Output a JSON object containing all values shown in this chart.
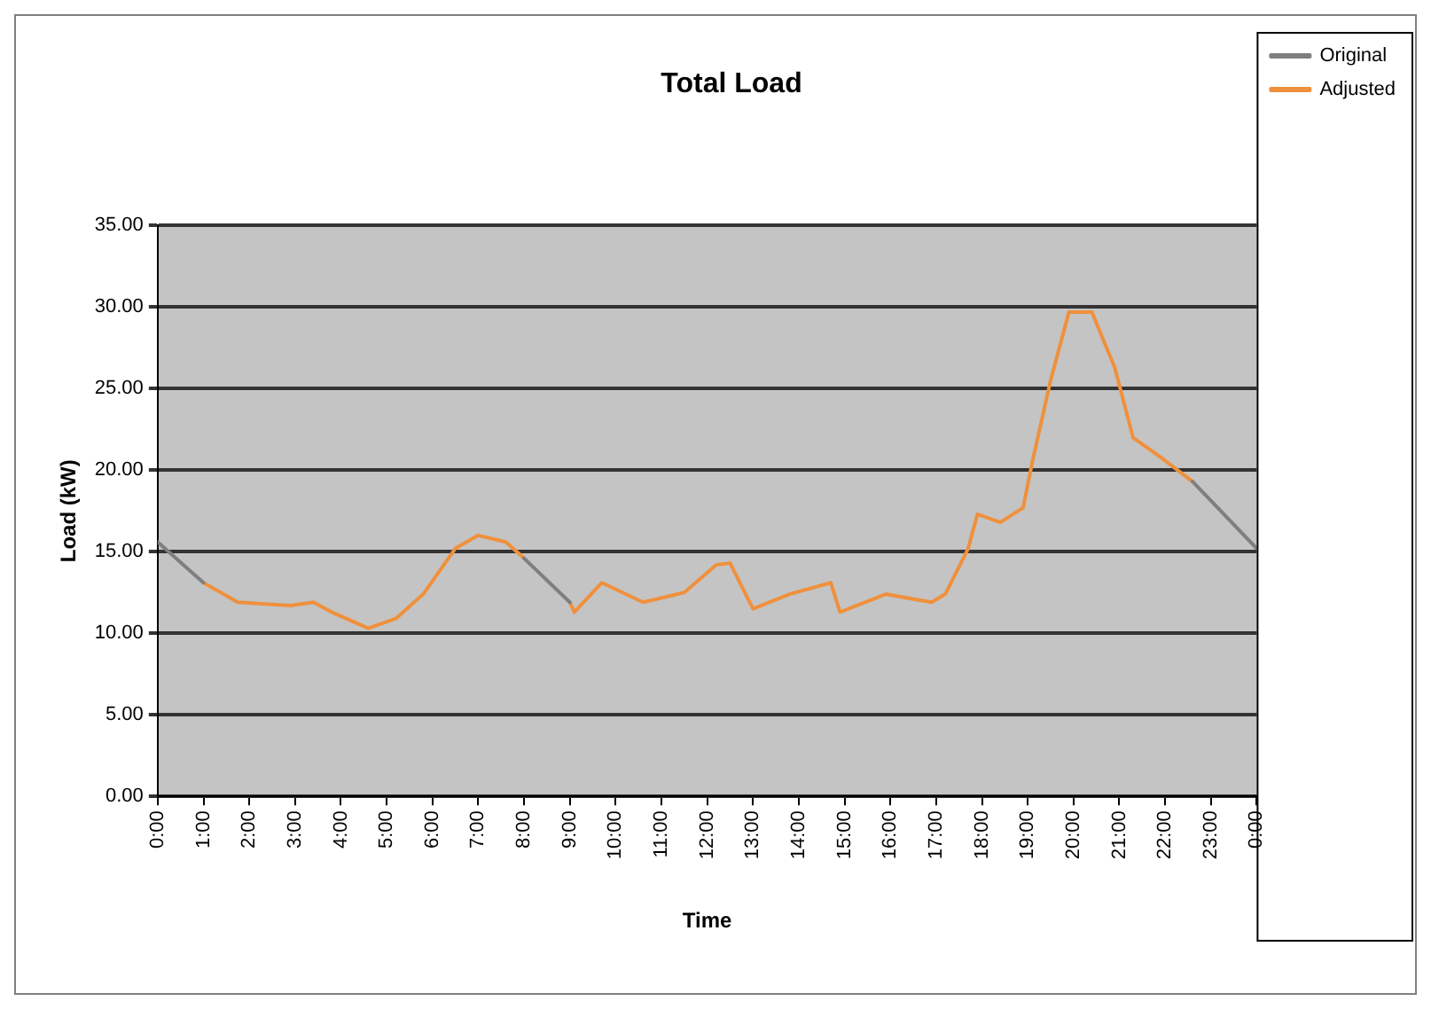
{
  "chart_data": {
    "type": "line",
    "title": "Total Load",
    "xlabel": "Time",
    "ylabel": "Load (kW)",
    "xlim": [
      0,
      24
    ],
    "xticks": [
      {
        "value": 0,
        "label": "0:00"
      },
      {
        "value": 1,
        "label": "1:00"
      },
      {
        "value": 2,
        "label": "2:00"
      },
      {
        "value": 3,
        "label": "3:00"
      },
      {
        "value": 4,
        "label": "4:00"
      },
      {
        "value": 5,
        "label": "5:00"
      },
      {
        "value": 6,
        "label": "6:00"
      },
      {
        "value": 7,
        "label": "7:00"
      },
      {
        "value": 8,
        "label": "8:00"
      },
      {
        "value": 9,
        "label": "9:00"
      },
      {
        "value": 10,
        "label": "10:00"
      },
      {
        "value": 11,
        "label": "11:00"
      },
      {
        "value": 12,
        "label": "12:00"
      },
      {
        "value": 13,
        "label": "13:00"
      },
      {
        "value": 14,
        "label": "14:00"
      },
      {
        "value": 15,
        "label": "15:00"
      },
      {
        "value": 16,
        "label": "16:00"
      },
      {
        "value": 17,
        "label": "17:00"
      },
      {
        "value": 18,
        "label": "18:00"
      },
      {
        "value": 19,
        "label": "19:00"
      },
      {
        "value": 20,
        "label": "20:00"
      },
      {
        "value": 21,
        "label": "21:00"
      },
      {
        "value": 22,
        "label": "22:00"
      },
      {
        "value": 23,
        "label": "23:00"
      },
      {
        "value": 24,
        "label": "0:00"
      }
    ],
    "ylim": [
      0,
      35
    ],
    "yticks": [
      {
        "value": 0,
        "label": "0.00"
      },
      {
        "value": 5,
        "label": "5.00"
      },
      {
        "value": 10,
        "label": "10.00"
      },
      {
        "value": 15,
        "label": "15.00"
      },
      {
        "value": 20,
        "label": "20.00"
      },
      {
        "value": 25,
        "label": "25.00"
      },
      {
        "value": 30,
        "label": "30.00"
      },
      {
        "value": 35,
        "label": "35.00"
      }
    ],
    "grid": "y",
    "legend": "top right",
    "marker": "none",
    "line_style": "solid",
    "series": [
      {
        "name": "Original",
        "color": "#7f7f7f",
        "x": [
          0,
          1,
          1.01,
          8,
          9,
          9.01,
          22.6,
          24
        ],
        "values": [
          15.6,
          13.1,
          null,
          14.6,
          11.9,
          null,
          19.3,
          15.2
        ]
      },
      {
        "name": "Adjusted",
        "color": "#f0903c",
        "x": [
          1,
          1.75,
          2.9,
          3.4,
          3.8,
          4.6,
          5.2,
          5.8,
          6.5,
          7.0,
          7.6,
          8.0,
          8.01,
          9.0,
          9.1,
          9.7,
          10.6,
          11.5,
          12.2,
          12.5,
          13.0,
          13.8,
          14.7,
          14.9,
          15.9,
          16.9,
          17.2,
          17.7,
          17.9,
          18.4,
          18.9,
          19.1,
          19.5,
          19.9,
          20.4,
          20.9,
          21.3,
          21.9,
          22.6
        ],
        "values": [
          13.1,
          11.9,
          11.7,
          11.9,
          11.3,
          10.3,
          10.9,
          12.4,
          15.2,
          16.0,
          15.6,
          14.6,
          null,
          11.9,
          11.3,
          13.1,
          11.9,
          12.5,
          14.2,
          14.3,
          11.5,
          12.4,
          13.1,
          11.3,
          12.4,
          11.9,
          12.4,
          15.2,
          17.3,
          16.8,
          17.7,
          20.5,
          25.5,
          29.7,
          29.7,
          26.3,
          22.0,
          20.8,
          19.3
        ]
      }
    ]
  }
}
